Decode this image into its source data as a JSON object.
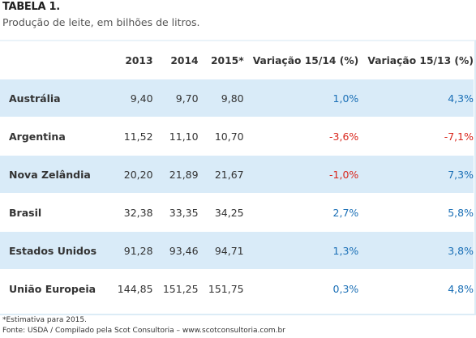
{
  "caption": {
    "title": "TABELA 1.",
    "subtitle": "Produção de leite, em bilhões de litros."
  },
  "table": {
    "headers": [
      "",
      "2013",
      "2014",
      "2015*",
      "Variação 15/14 (%)",
      "Variação 15/13 (%)"
    ],
    "rows": [
      {
        "country": "Austrália",
        "y2013": "9,40",
        "y2014": "9,70",
        "y2015": "9,80",
        "var1514": "1,0%",
        "var1513": "4,3%",
        "var1514_sign": "pos",
        "var1513_sign": "pos"
      },
      {
        "country": "Argentina",
        "y2013": "11,52",
        "y2014": "11,10",
        "y2015": "10,70",
        "var1514": "-3,6%",
        "var1513": "-7,1%",
        "var1514_sign": "neg",
        "var1513_sign": "neg"
      },
      {
        "country": "Nova Zelândia",
        "y2013": "20,20",
        "y2014": "21,89",
        "y2015": "21,67",
        "var1514": "-1,0%",
        "var1513": "7,3%",
        "var1514_sign": "neg",
        "var1513_sign": "pos"
      },
      {
        "country": "Brasil",
        "y2013": "32,38",
        "y2014": "33,35",
        "y2015": "34,25",
        "var1514": "2,7%",
        "var1513": "5,8%",
        "var1514_sign": "pos",
        "var1513_sign": "pos"
      },
      {
        "country": "Estados Unidos",
        "y2013": "91,28",
        "y2014": "93,46",
        "y2015": "94,71",
        "var1514": "1,3%",
        "var1513": "3,8%",
        "var1514_sign": "pos",
        "var1513_sign": "pos"
      },
      {
        "country": "União Europeia",
        "y2013": "144,85",
        "y2014": "151,25",
        "y2015": "151,75",
        "var1514": "0,3%",
        "var1513": "4,8%",
        "var1514_sign": "pos",
        "var1513_sign": "pos"
      }
    ]
  },
  "footnotes": {
    "note": "*Estimativa para 2015.",
    "source": "Fonte: USDA / Compilado pela Scot Consultoria – www.scotconsultoria.com.br"
  },
  "colors": {
    "shaded_row": "#d9ebf8",
    "positive": "#1a6fb6",
    "negative": "#d9261c"
  }
}
